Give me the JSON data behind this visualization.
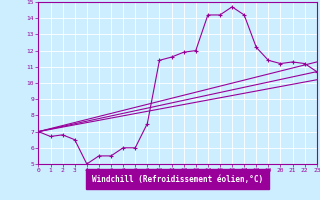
{
  "xlabel": "Windchill (Refroidissement éolien,°C)",
  "bg_color": "#cceeff",
  "line_color": "#990099",
  "label_bg_color": "#990099",
  "grid_color": "#aaddee",
  "xmin": 0,
  "xmax": 23,
  "ymin": 5,
  "ymax": 15,
  "xticks": [
    0,
    1,
    2,
    3,
    4,
    5,
    6,
    7,
    8,
    9,
    10,
    11,
    12,
    13,
    14,
    15,
    16,
    17,
    18,
    19,
    20,
    21,
    22,
    23
  ],
  "yticks": [
    5,
    6,
    7,
    8,
    9,
    10,
    11,
    12,
    13,
    14,
    15
  ],
  "line1_x": [
    0,
    1,
    2,
    3,
    4,
    5,
    6,
    7,
    8,
    9,
    10,
    11,
    12,
    13,
    14,
    15,
    16,
    17,
    18,
    19,
    20,
    21,
    22,
    23
  ],
  "line1_y": [
    7.0,
    6.7,
    6.8,
    6.5,
    5.0,
    5.5,
    5.5,
    6.0,
    6.0,
    7.5,
    11.4,
    11.6,
    11.9,
    12.0,
    14.2,
    14.2,
    14.7,
    14.2,
    12.2,
    11.4,
    11.2,
    11.3,
    11.2,
    10.7
  ],
  "line2_x": [
    0,
    23
  ],
  "line2_y": [
    7.0,
    10.7
  ],
  "line3_x": [
    0,
    23
  ],
  "line3_y": [
    7.0,
    11.3
  ],
  "line4_x": [
    0,
    23
  ],
  "line4_y": [
    7.0,
    10.2
  ]
}
